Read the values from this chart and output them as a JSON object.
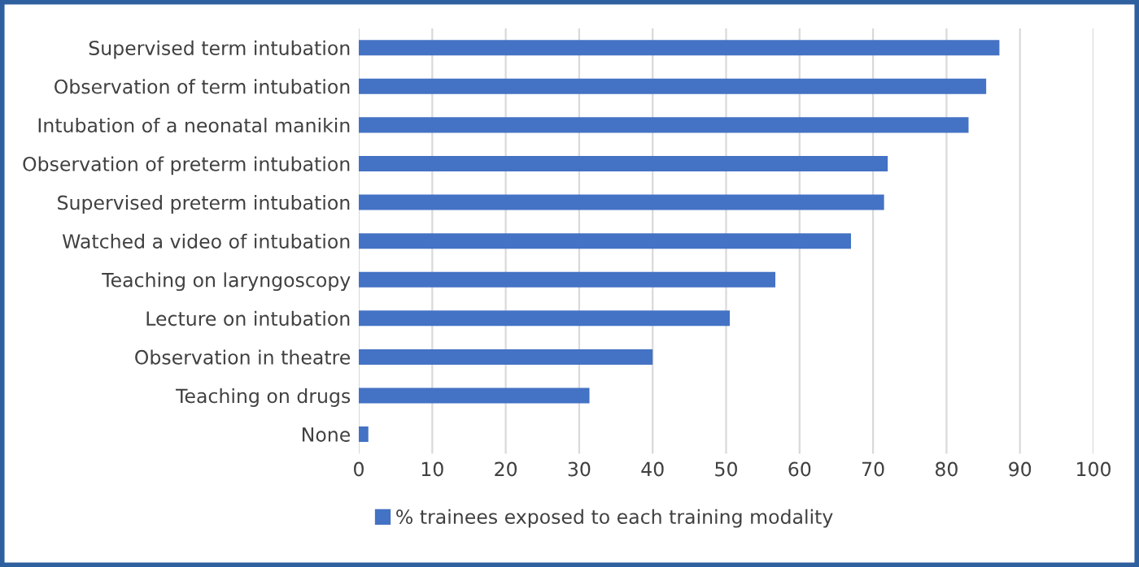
{
  "chart_data": {
    "type": "bar",
    "orientation": "horizontal",
    "categories": [
      "Supervised term intubation",
      "Observation of term intubation",
      "Intubation of a neonatal manikin",
      "Observation of preterm intubation",
      "Supervised preterm intubation",
      "Watched a video of intubation",
      "Teaching on laryngoscopy",
      "Lecture on intubation",
      "Observation in theatre",
      "Teaching on drugs",
      "None"
    ],
    "series": [
      {
        "name": "% trainees exposed to each training modality",
        "color": "#4472c4",
        "values": [
          87.2,
          85.4,
          83,
          72,
          71.5,
          67,
          56.7,
          50.5,
          40,
          31.4,
          1.3
        ]
      }
    ],
    "xlim": [
      0,
      100
    ],
    "xticks": [
      0,
      10,
      20,
      30,
      40,
      50,
      60,
      70,
      80,
      90,
      100
    ],
    "grid": "x",
    "legend": "bottom"
  }
}
